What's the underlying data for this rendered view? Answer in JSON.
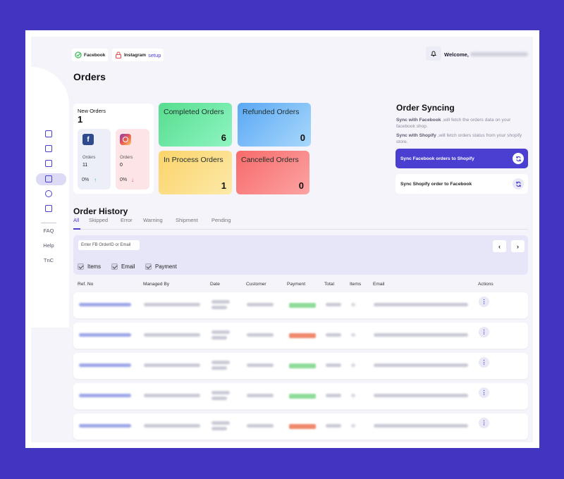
{
  "topbar": {
    "facebook_label": "Facebook",
    "instagram_label": "Instagram",
    "setup_label": "setup",
    "welcome_label": "Welcome,"
  },
  "page": {
    "title": "Orders"
  },
  "sidebar": {
    "icons": [
      "home-icon",
      "box-icon",
      "document-icon",
      "orders-icon",
      "settings-icon",
      "package-icon"
    ],
    "links": [
      "FAQ",
      "Help",
      "TnC"
    ]
  },
  "new_orders": {
    "title": "New Orders",
    "count": "1",
    "facebook": {
      "label": "Orders",
      "value": "11",
      "percent": "0%"
    },
    "instagram": {
      "label": "Orders",
      "value": "0",
      "percent": "0%"
    }
  },
  "stats": [
    {
      "label": "Completed Orders",
      "value": "6",
      "color": "#5fe39b"
    },
    {
      "label": "Refunded Orders",
      "value": "0",
      "color": "#6ab4f7"
    },
    {
      "label": "In Process Orders",
      "value": "1",
      "color": "#fbd978"
    },
    {
      "label": "Cancelled Orders",
      "value": "0",
      "color": "#f87676"
    }
  ],
  "sync": {
    "title": "Order Syncing",
    "desc1_bold": "Sync with Facebook",
    "desc1_rest": " ,will fetch the orders data on your facebook shop.",
    "desc2_bold": "Sync with Shopify",
    "desc2_rest": " ,will fetch orders status from your shopify store.",
    "btn_facebook": "Sync Facebook orders to Shopify",
    "btn_shopify": "Sync Shopify order to Facebook",
    "accent": "#4a3fd0"
  },
  "history": {
    "title": "Order History",
    "tabs": [
      "All",
      "Skipped",
      "Error",
      "Warning",
      "Shipment",
      "Pending"
    ],
    "search_placeholder": "Enter FB OrderID or Email",
    "filters": [
      "Items",
      "Email",
      "Payment"
    ],
    "columns": [
      "Ref. No",
      "Managed By",
      "Date",
      "Customer",
      "Payment",
      "Total",
      "Items",
      "Email",
      "Actions"
    ],
    "payment_colors": [
      "#8fdc9a",
      "#ef8a6e",
      "#8fdc9a",
      "#8fdc9a",
      "#ef8a6e"
    ]
  }
}
